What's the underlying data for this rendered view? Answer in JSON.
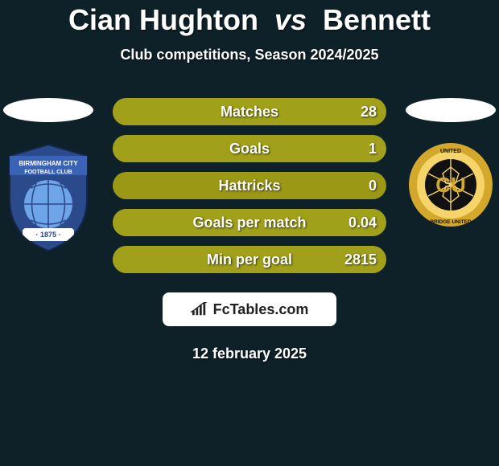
{
  "title": {
    "player1": "Cian Hughton",
    "vs": "vs",
    "player2": "Bennett"
  },
  "subtitle": "Club competitions, Season 2024/2025",
  "date": "12 february 2025",
  "brand": "FcTables.com",
  "colors": {
    "background": "#0e2129",
    "bar_empty": "#9b9815",
    "bar_fill_left": "#a0a01a",
    "bar_fill_right": "#a0a01a",
    "text": "#ffffff",
    "brand_bg": "#ffffff",
    "brand_text": "#222222",
    "ellipse": "#ffffff"
  },
  "left_badge": {
    "name": "birmingham-city-badge",
    "text_top": "BIRMINGHAM CITY",
    "text_mid": "FOOTBALL CLUB",
    "text_year": "· 1875 ·",
    "outer": "#2b4a8c",
    "inner": "#3a63b8",
    "globe": "#6ea5e8",
    "ribbon": "#fff"
  },
  "right_badge": {
    "name": "cambridge-united-badge",
    "letters": "CU",
    "ring_text_top": "UNITED",
    "ring_text_bottom": "BRIDGE UNITED",
    "outer": "#d4a82a",
    "ball": "#111111",
    "inner_bg": "#f5d56a",
    "text": "#111111"
  },
  "stats": [
    {
      "label": "Matches",
      "left_val": "",
      "right_val": "28",
      "left_pct": 0,
      "right_pct": 100
    },
    {
      "label": "Goals",
      "left_val": "",
      "right_val": "1",
      "left_pct": 0,
      "right_pct": 100
    },
    {
      "label": "Hattricks",
      "left_val": "",
      "right_val": "0",
      "left_pct": 0,
      "right_pct": 0
    },
    {
      "label": "Goals per match",
      "left_val": "",
      "right_val": "0.04",
      "left_pct": 0,
      "right_pct": 100
    },
    {
      "label": "Min per goal",
      "left_val": "",
      "right_val": "2815",
      "left_pct": 0,
      "right_pct": 100
    }
  ]
}
